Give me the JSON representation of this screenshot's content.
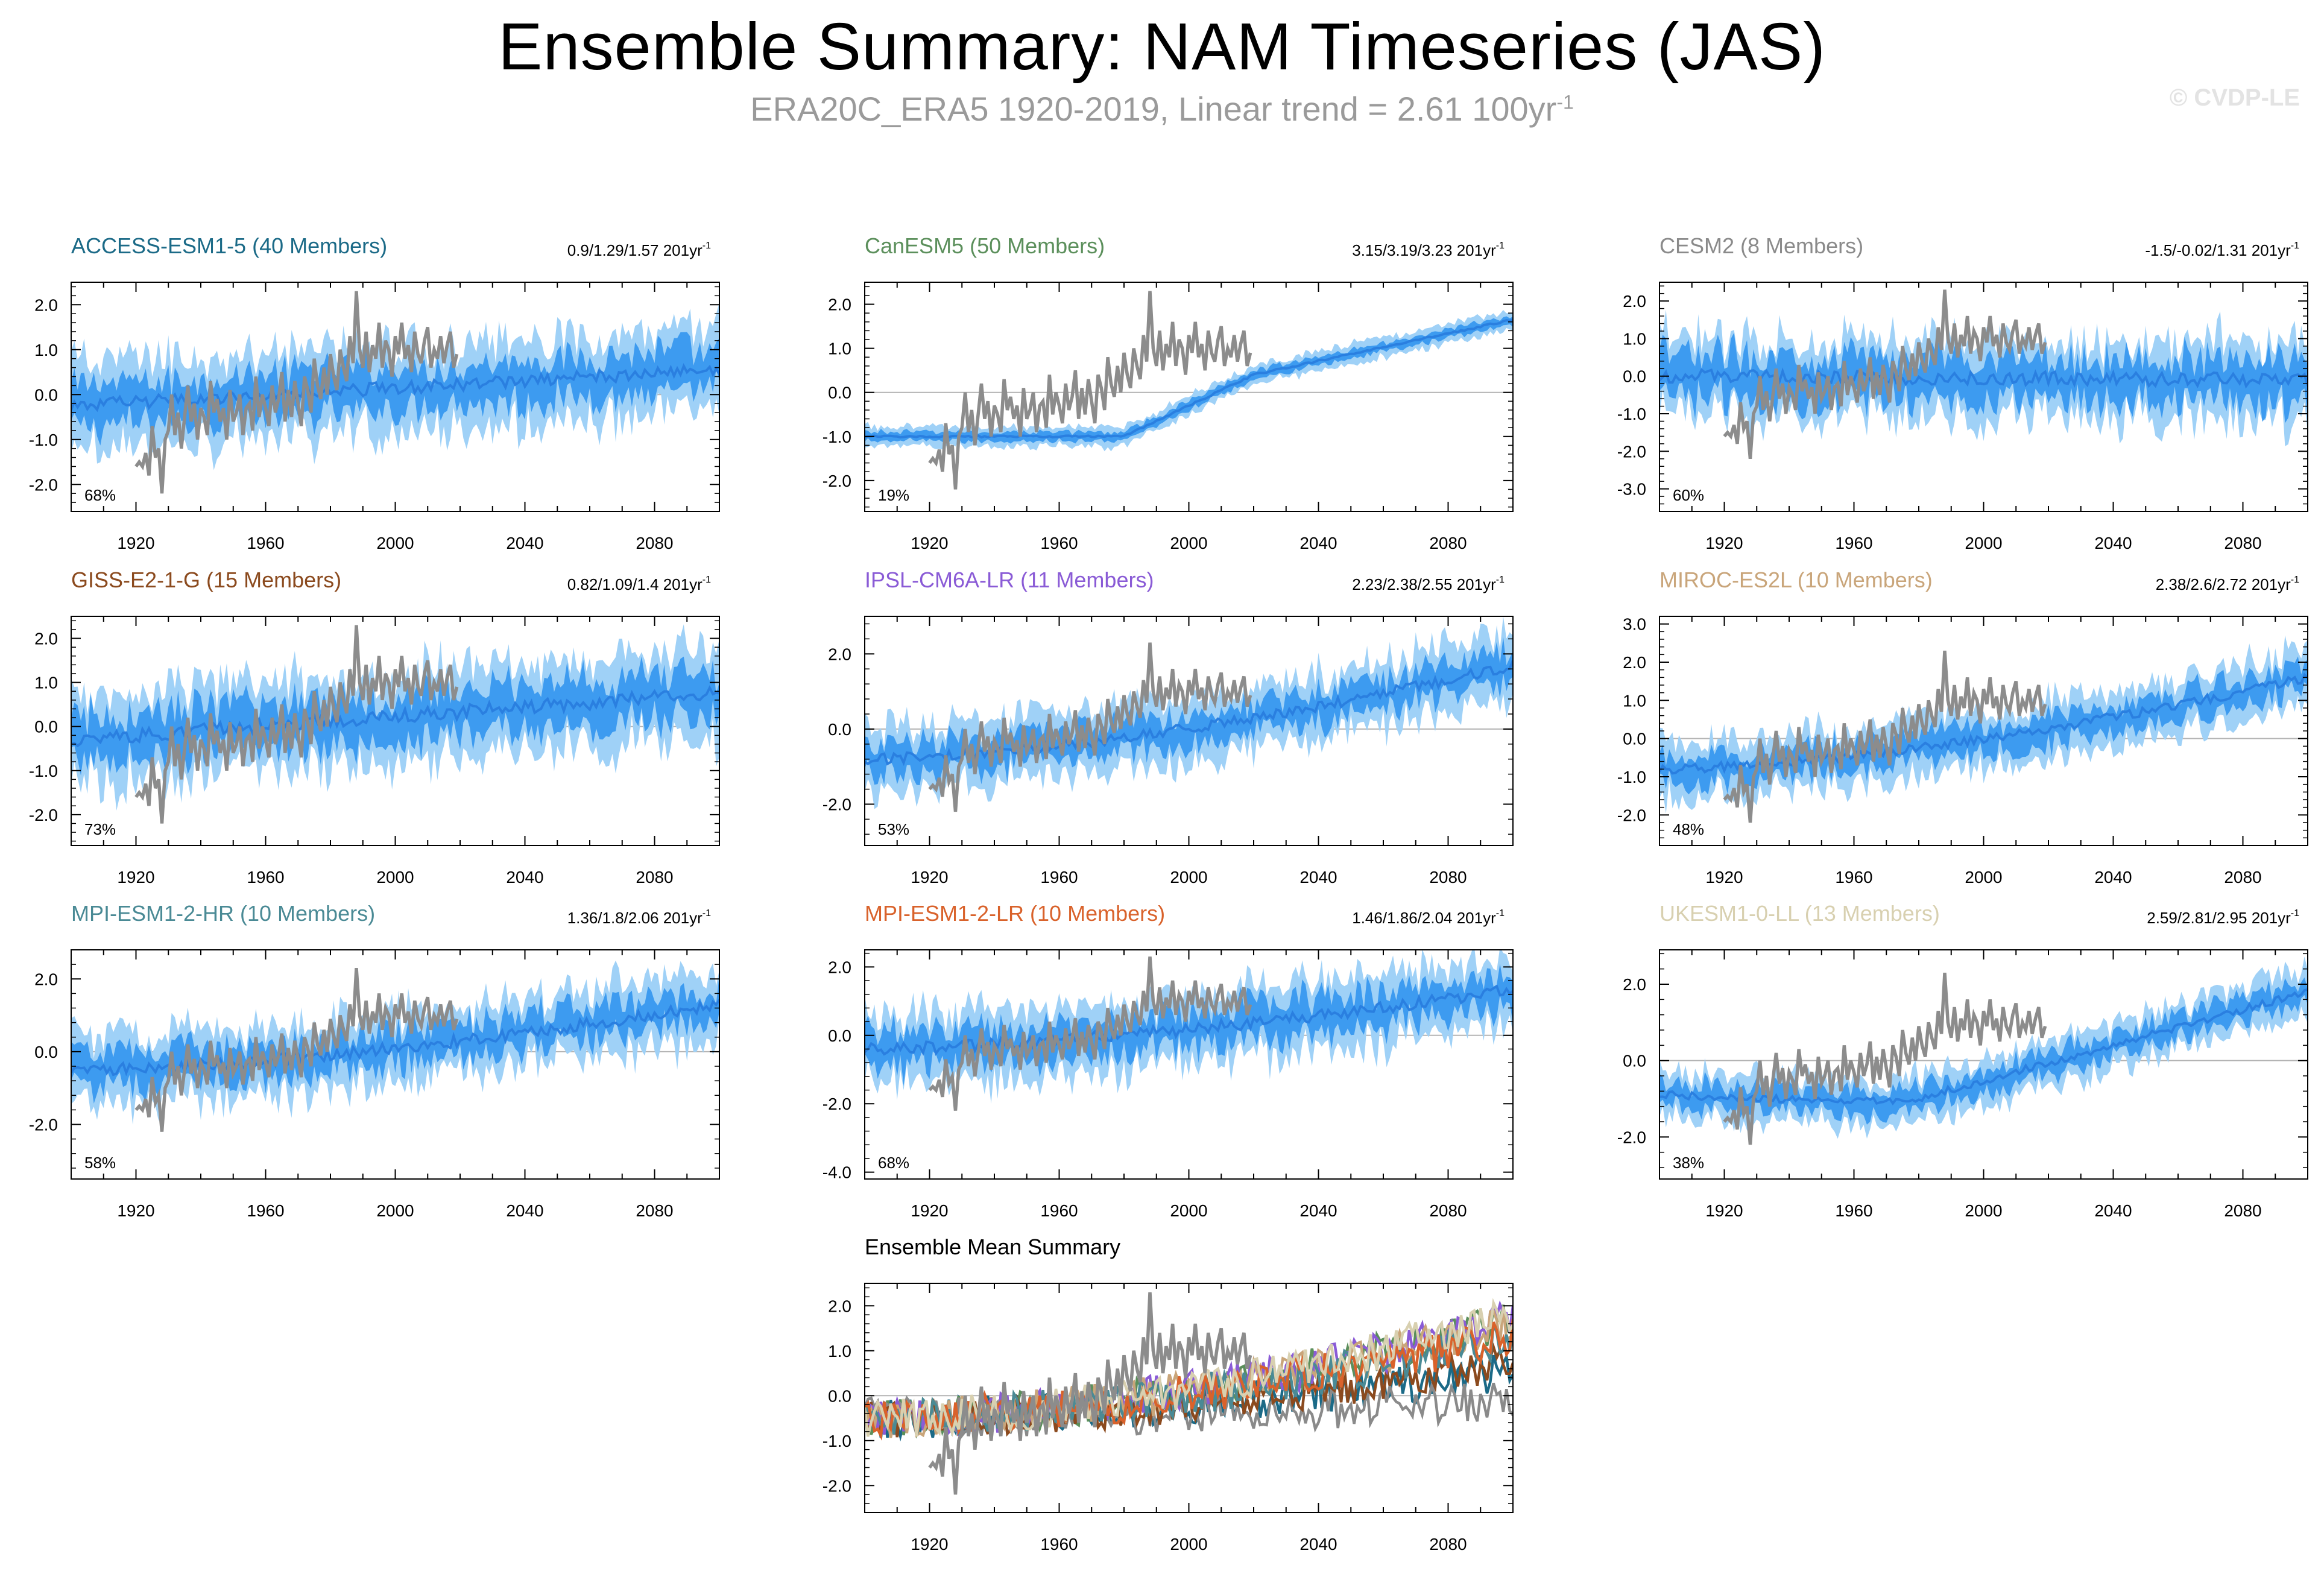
{
  "header": {
    "title": "Ensemble Summary: NAM Timeseries (JAS)",
    "subtitle": "ERA20C_ERA5 1920-2019, Linear trend = 2.61 100yr",
    "subtitle_sup": "-1",
    "watermark": "© CVDP-LE"
  },
  "colors": {
    "outer_band": "#9fd1f7",
    "inner_band": "#3d9bf0",
    "mean_line": "#2a7fe0",
    "obs_line": "#8c8c8c",
    "zero_line": "#b4b4b4"
  },
  "chart_data": [
    {
      "type": "area",
      "name": "access",
      "title": "ACCESS-ESM1-5 (40 Members)",
      "title_color": "#1b6a87",
      "trend_label": "0.9/1.29/1.57 201yr",
      "pct_label": "68%",
      "ylim": [
        -2.6,
        2.5
      ],
      "yticks": [
        -2,
        -1,
        0,
        1,
        2
      ],
      "ytick_labels": [
        "-2.0",
        "-1.0",
        "0.0",
        "1.0",
        "2.0"
      ],
      "xlim": [
        1900,
        2100
      ],
      "xticks": [
        1920,
        1960,
        2000,
        2040,
        2080
      ],
      "mean_start": -0.25,
      "mean_end": 0.55,
      "mean_shape": "linear",
      "spread_outer": 0.95,
      "spread_inner": 0.45,
      "noise": 0.35
    },
    {
      "type": "area",
      "name": "canesm5",
      "title": "CanESM5 (50 Members)",
      "title_color": "#5b8f5b",
      "trend_label": "3.15/3.19/3.23 201yr",
      "pct_label": "19%",
      "ylim": [
        -2.7,
        2.5
      ],
      "yticks": [
        -2,
        -1,
        0,
        1,
        2
      ],
      "ytick_labels": [
        "-2.0",
        "-1.0",
        "0.0",
        "1.0",
        "2.0"
      ],
      "xlim": [
        1900,
        2100
      ],
      "xticks": [
        1920,
        1960,
        2000,
        2040,
        2080
      ],
      "mean_start": -1.0,
      "mean_end": 1.65,
      "mean_shape": "canesm",
      "spread_outer": 0.22,
      "spread_inner": 0.1,
      "noise": 0.05
    },
    {
      "type": "area",
      "name": "cesm2",
      "title": "CESM2 (8 Members)",
      "title_color": "#8a8a8a",
      "trend_label": "-1.5/-0.02/1.31 201yr",
      "pct_label": "60%",
      "ylim": [
        -3.6,
        2.5
      ],
      "yticks": [
        -3,
        -2,
        -1,
        0,
        1,
        2
      ],
      "ytick_labels": [
        "-3.0",
        "-2.0",
        "-1.0",
        "0.0",
        "1.0",
        "2.0"
      ],
      "xlim": [
        1900,
        2100
      ],
      "xticks": [
        1920,
        1960,
        2000,
        2040,
        2080
      ],
      "mean_start": 0.0,
      "mean_end": -0.1,
      "mean_shape": "linear",
      "spread_outer": 1.05,
      "spread_inner": 0.55,
      "noise": 0.45
    },
    {
      "type": "area",
      "name": "giss",
      "title": "GISS-E2-1-G (15 Members)",
      "title_color": "#8b4a1e",
      "trend_label": "0.82/1.09/1.4 201yr",
      "pct_label": "73%",
      "ylim": [
        -2.7,
        2.5
      ],
      "yticks": [
        -2,
        -1,
        0,
        1,
        2
      ],
      "ytick_labels": [
        "-2.0",
        "-1.0",
        "0.0",
        "1.0",
        "2.0"
      ],
      "xlim": [
        1900,
        2100
      ],
      "xticks": [
        1920,
        1960,
        2000,
        2040,
        2080
      ],
      "mean_start": -0.3,
      "mean_end": 0.75,
      "mean_shape": "linear",
      "spread_outer": 1.0,
      "spread_inner": 0.5,
      "noise": 0.4
    },
    {
      "type": "area",
      "name": "ipsl",
      "title": "IPSL-CM6A-LR (11 Members)",
      "title_color": "#8a5bd6",
      "trend_label": "2.23/2.38/2.55 201yr",
      "pct_label": "53%",
      "ylim": [
        -3.1,
        3.0
      ],
      "yticks": [
        -2,
        0,
        2
      ],
      "ytick_labels": [
        "-2.0",
        "0.0",
        "2.0"
      ],
      "xlim": [
        1900,
        2100
      ],
      "xticks": [
        1920,
        1960,
        2000,
        2040,
        2080
      ],
      "mean_start": -0.8,
      "mean_end": 1.7,
      "mean_shape": "quad",
      "spread_outer": 0.85,
      "spread_inner": 0.4,
      "noise": 0.35
    },
    {
      "type": "area",
      "name": "miroc",
      "title": "MIROC-ES2L (10 Members)",
      "title_color": "#c9a57a",
      "trend_label": "2.38/2.6/2.72 201yr",
      "pct_label": "48%",
      "ylim": [
        -2.8,
        3.2
      ],
      "yticks": [
        -2,
        -1,
        0,
        1,
        2,
        3
      ],
      "ytick_labels": [
        "-2.0",
        "-1.0",
        "0.0",
        "1.0",
        "2.0",
        "3.0"
      ],
      "xlim": [
        1900,
        2100
      ],
      "xticks": [
        1920,
        1960,
        2000,
        2040,
        2080
      ],
      "mean_start": -0.8,
      "mean_end": 1.6,
      "mean_shape": "quad",
      "spread_outer": 0.75,
      "spread_inner": 0.35,
      "noise": 0.3
    },
    {
      "type": "area",
      "name": "mpihr",
      "title": "MPI-ESM1-2-HR (10 Members)",
      "title_color": "#4a8a95",
      "trend_label": "1.36/1.8/2.06 201yr",
      "pct_label": "58%",
      "ylim": [
        -3.5,
        2.8
      ],
      "yticks": [
        -2,
        0,
        2
      ],
      "ytick_labels": [
        "-2.0",
        "0.0",
        "2.0"
      ],
      "xlim": [
        1900,
        2100
      ],
      "xticks": [
        1920,
        1960,
        2000,
        2040,
        2080
      ],
      "mean_start": -0.5,
      "mean_end": 1.3,
      "mean_shape": "quad",
      "spread_outer": 0.95,
      "spread_inner": 0.45,
      "noise": 0.4
    },
    {
      "type": "area",
      "name": "mpilr",
      "title": "MPI-ESM1-2-LR (10 Members)",
      "title_color": "#d9622b",
      "trend_label": "1.46/1.86/2.04 201yr",
      "pct_label": "68%",
      "ylim": [
        -4.2,
        2.5
      ],
      "yticks": [
        -4,
        -2,
        0,
        2
      ],
      "ytick_labels": [
        "-4.0",
        "-2.0",
        "0.0",
        "2.0"
      ],
      "xlim": [
        1900,
        2100
      ],
      "xticks": [
        1920,
        1960,
        2000,
        2040,
        2080
      ],
      "mean_start": -0.4,
      "mean_end": 1.35,
      "mean_shape": "quad",
      "spread_outer": 1.0,
      "spread_inner": 0.5,
      "noise": 0.45
    },
    {
      "type": "area",
      "name": "ukesm",
      "title": "UKESM1-0-LL (13 Members)",
      "title_color": "#d8d0b0",
      "trend_label": "2.59/2.81/2.95 201yr",
      "pct_label": "38%",
      "ylim": [
        -3.1,
        2.9
      ],
      "yticks": [
        -2,
        0,
        2
      ],
      "ytick_labels": [
        "-2.0",
        "0.0",
        "2.0"
      ],
      "xlim": [
        1900,
        2100
      ],
      "xticks": [
        1920,
        1960,
        2000,
        2040,
        2080
      ],
      "mean_start": -0.9,
      "mean_end": 1.8,
      "mean_shape": "ukesm",
      "spread_outer": 0.6,
      "spread_inner": 0.3,
      "noise": 0.25
    },
    {
      "type": "line",
      "name": "ensemble_mean",
      "title": "Ensemble Mean Summary",
      "title_color": "#000000",
      "trend_label": "",
      "pct_label": "",
      "ylim": [
        -2.6,
        2.5
      ],
      "yticks": [
        -2,
        -1,
        0,
        1,
        2
      ],
      "ytick_labels": [
        "-2.0",
        "-1.0",
        "0.0",
        "1.0",
        "2.0"
      ],
      "xlim": [
        1900,
        2100
      ],
      "xticks": [
        1920,
        1960,
        2000,
        2040,
        2080
      ],
      "series_colors": [
        "#1b6a87",
        "#5b8f5b",
        "#8a8a8a",
        "#8b4a1e",
        "#8a5bd6",
        "#c9a57a",
        "#4a8a95",
        "#d9622b",
        "#d8d0b0"
      ],
      "series_end_values": [
        0.55,
        1.65,
        -0.1,
        0.75,
        1.7,
        1.6,
        1.3,
        1.35,
        1.8
      ]
    }
  ],
  "observations": {
    "name": "ERA20C_ERA5",
    "years": [
      1920,
      1921,
      1922,
      1923,
      1924,
      1925,
      1926,
      1927,
      1928,
      1929,
      1930,
      1931,
      1932,
      1933,
      1934,
      1935,
      1936,
      1937,
      1938,
      1939,
      1940,
      1941,
      1942,
      1943,
      1944,
      1945,
      1946,
      1947,
      1948,
      1949,
      1950,
      1951,
      1952,
      1953,
      1954,
      1955,
      1956,
      1957,
      1958,
      1959,
      1960,
      1961,
      1962,
      1963,
      1964,
      1965,
      1966,
      1967,
      1968,
      1969,
      1970,
      1971,
      1972,
      1973,
      1974,
      1975,
      1976,
      1977,
      1978,
      1979,
      1980,
      1981,
      1982,
      1983,
      1984,
      1985,
      1986,
      1987,
      1988,
      1989,
      1990,
      1991,
      1992,
      1993,
      1994,
      1995,
      1996,
      1997,
      1998,
      1999,
      2000,
      2001,
      2002,
      2003,
      2004,
      2005,
      2006,
      2007,
      2008,
      2009,
      2010,
      2011,
      2012,
      2013,
      2014,
      2015,
      2016,
      2017,
      2018,
      2019
    ],
    "values": [
      -1.6,
      -1.5,
      -1.6,
      -1.3,
      -1.8,
      -0.7,
      -1.4,
      -1.2,
      -2.2,
      -1.0,
      -0.8,
      0.0,
      -0.9,
      -0.4,
      -1.2,
      -0.5,
      0.2,
      -0.6,
      -0.2,
      -1.0,
      -0.3,
      -0.5,
      -0.9,
      0.3,
      -0.4,
      -0.1,
      -0.6,
      -0.3,
      -1.0,
      0.1,
      -0.6,
      -0.4,
      0.0,
      -0.9,
      -0.3,
      -0.2,
      -0.8,
      0.4,
      -0.5,
      0.0,
      -0.3,
      -0.7,
      0.2,
      -0.4,
      -0.1,
      0.5,
      -0.6,
      0.1,
      -0.5,
      0.3,
      -0.2,
      -0.7,
      0.4,
      0.1,
      -0.4,
      0.8,
      0.2,
      -0.1,
      0.6,
      0.0,
      0.9,
      0.4,
      0.1,
      1.0,
      0.6,
      0.3,
      1.3,
      0.7,
      2.3,
      1.0,
      0.6,
      1.4,
      0.5,
      1.1,
      0.8,
      1.6,
      0.6,
      1.2,
      1.0,
      0.4,
      1.3,
      0.9,
      1.6,
      0.8,
      1.1,
      0.5,
      1.4,
      0.9,
      0.7,
      1.2,
      1.5,
      0.6,
      1.0,
      0.8,
      1.3,
      0.7,
      1.1,
      1.4,
      0.6,
      0.9
    ]
  }
}
